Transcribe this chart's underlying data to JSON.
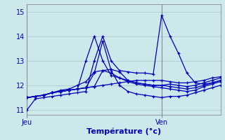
{
  "xlabel": "Température (°c)",
  "background_color": "#cce8ea",
  "line_color": "#0000bb",
  "grid_color": "#aacccc",
  "vline_color": "#888899",
  "ylim": [
    10.8,
    15.3
  ],
  "xlim": [
    0,
    23
  ],
  "yticks": [
    11,
    12,
    13,
    14,
    15
  ],
  "jeu_x": 0,
  "ven_x": 16,
  "series": [
    [
      11.0,
      11.45,
      11.5,
      11.55,
      11.6,
      11.65,
      11.7,
      11.75,
      13.0,
      14.0,
      13.0,
      12.6,
      12.55,
      12.5,
      12.5,
      12.45,
      14.85,
      14.0,
      13.3,
      12.5,
      12.1,
      12.05,
      12.1,
      12.2
    ],
    [
      11.5,
      11.55,
      11.6,
      11.7,
      11.75,
      11.8,
      11.85,
      11.9,
      11.95,
      12.0,
      12.05,
      12.1,
      12.15,
      12.2,
      12.2,
      12.2,
      12.2,
      12.15,
      12.1,
      12.1,
      12.15,
      12.2,
      12.3,
      12.35
    ],
    [
      11.5,
      11.55,
      11.6,
      11.7,
      11.8,
      11.85,
      12.0,
      12.15,
      12.55,
      12.6,
      12.5,
      12.3,
      12.2,
      12.1,
      12.05,
      12.0,
      12.0,
      12.05,
      12.0,
      11.95,
      12.0,
      12.1,
      12.2,
      12.3
    ],
    [
      11.5,
      11.55,
      11.6,
      11.7,
      11.75,
      11.8,
      11.85,
      11.9,
      12.5,
      13.8,
      12.6,
      12.0,
      11.75,
      11.65,
      11.6,
      11.55,
      11.5,
      11.55,
      11.55,
      11.6,
      11.7,
      11.8,
      11.9,
      12.0
    ],
    [
      11.5,
      11.55,
      11.6,
      11.7,
      11.75,
      11.8,
      11.85,
      13.0,
      14.0,
      13.0,
      12.4,
      12.3,
      12.15,
      12.05,
      12.0,
      11.95,
      11.9,
      11.85,
      11.8,
      11.75,
      11.8,
      11.95,
      12.05,
      12.15
    ],
    [
      11.5,
      11.55,
      11.6,
      11.7,
      11.75,
      11.8,
      11.85,
      11.9,
      11.95,
      12.6,
      12.65,
      12.55,
      12.2,
      12.1,
      12.05,
      12.0,
      12.0,
      11.95,
      11.9,
      11.85,
      11.9,
      12.0,
      12.1,
      12.2
    ]
  ]
}
